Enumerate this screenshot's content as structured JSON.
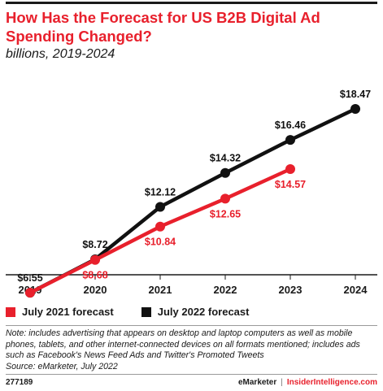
{
  "header": {
    "title": "How Has the Forecast for US B2B Digital Ad Spending Changed?",
    "subtitle": "billions, 2019-2024"
  },
  "chart_data": {
    "type": "line",
    "title": "How Has the Forecast for US B2B Digital Ad Spending Changed?",
    "subtitle": "billions, 2019-2024",
    "categories": [
      "2019",
      "2020",
      "2021",
      "2022",
      "2023",
      "2024"
    ],
    "ylim": [
      5,
      20
    ],
    "grid": false,
    "legend": "bottom-left",
    "series": [
      {
        "name": "July 2021 forecast",
        "color": "#e8202c",
        "values": [
          6.55,
          8.68,
          10.84,
          12.65,
          14.57,
          null
        ],
        "labels": [
          "$6.55",
          "$8.68",
          "$10.84",
          "$12.65",
          "$14.57",
          ""
        ],
        "label_position": "below"
      },
      {
        "name": "July 2022 forecast",
        "color": "#111111",
        "values": [
          6.55,
          8.72,
          12.12,
          14.32,
          16.46,
          18.47
        ],
        "labels": [
          "$6.55",
          "$8.72",
          "$12.12",
          "$14.32",
          "$16.46",
          "$18.47"
        ],
        "label_position": "above"
      }
    ]
  },
  "legend": {
    "items": [
      {
        "label": "July 2021 forecast",
        "color": "#e8202c"
      },
      {
        "label": "July 2022 forecast",
        "color": "#111111"
      }
    ]
  },
  "notes": {
    "note": "Note: includes advertising that appears on desktop and laptop computers as well as mobile phones, tablets, and other internet-connected devices on all formats mentioned; includes ads such as Facebook's News Feed Ads and Twitter's Promoted Tweets",
    "source": "Source: eMarketer, July 2022"
  },
  "footer": {
    "chart_id": "277189",
    "brand": "eMarketer",
    "separator": "|",
    "site": "InsiderIntelligence.com"
  }
}
